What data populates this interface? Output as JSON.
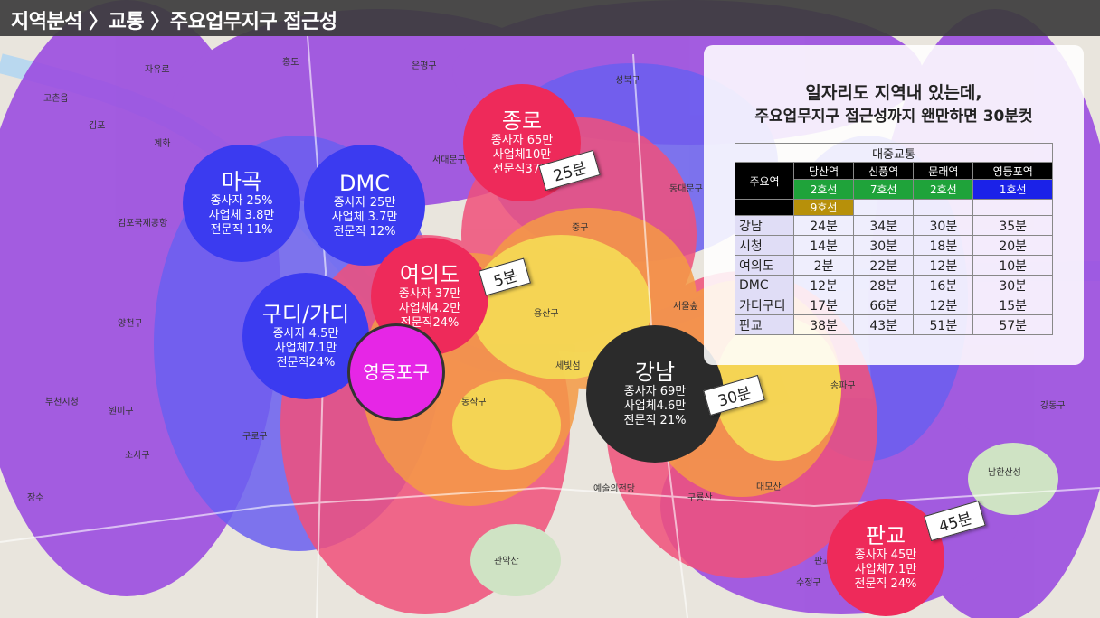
{
  "breadcrumb": "지역분석 〉교통 〉주요업무지구 접근성",
  "panel": {
    "title_line1": "일자리도 지역내 있는데,",
    "title_line2": "주요업무지구 접근성까지 왠만하면 30분컷",
    "table_title": "대중교통",
    "station_header": "주요역",
    "stations": [
      {
        "name": "당산역",
        "lines": [
          "2호선",
          "9호선"
        ],
        "line_colors": [
          "#1fa33a",
          "#b7900a"
        ]
      },
      {
        "name": "신풍역",
        "lines": [
          "7호선"
        ],
        "line_colors": [
          "#1fa33a"
        ]
      },
      {
        "name": "문래역",
        "lines": [
          "2호선"
        ],
        "line_colors": [
          "#1fa33a"
        ]
      },
      {
        "name": "영등포역",
        "lines": [
          "1호선"
        ],
        "line_colors": [
          "#1b22e8"
        ]
      }
    ],
    "rows": [
      {
        "dest": "강남",
        "times": [
          "24분",
          "34분",
          "30분",
          "35분"
        ]
      },
      {
        "dest": "시청",
        "times": [
          "14분",
          "30분",
          "18분",
          "20분"
        ]
      },
      {
        "dest": "여의도",
        "times": [
          "2분",
          "22분",
          "12분",
          "10분"
        ]
      },
      {
        "dest": "DMC",
        "times": [
          "12분",
          "28분",
          "16분",
          "30분"
        ]
      },
      {
        "dest": "가디구디",
        "times": [
          "17분",
          "66분",
          "12분",
          "15분"
        ]
      },
      {
        "dest": "판교",
        "times": [
          "38분",
          "43분",
          "51분",
          "57분"
        ]
      }
    ]
  },
  "hubs": {
    "magok": {
      "name": "마곡",
      "stats": [
        "종사자 25%",
        "사업체 3.8만",
        "전문직 11%"
      ],
      "color": "#3b3bf0"
    },
    "dmc": {
      "name": "DMC",
      "stats": [
        "종사자 25만",
        "사업체 3.7만",
        "전문직 12%"
      ],
      "color": "#3b3bf0"
    },
    "jongro": {
      "name": "종로",
      "stats": [
        "종사자 65만",
        "사업체10만",
        "전문직37%"
      ],
      "color": "#ee2a5a"
    },
    "yeouido": {
      "name": "여의도",
      "stats": [
        "종사자 37만",
        "사업체4.2만",
        "전문직24%"
      ],
      "color": "#ee2a5a"
    },
    "guro": {
      "name": "구디/가디",
      "stats": [
        "종사자 4.5만",
        "사업체7.1만",
        "전문직24%"
      ],
      "color": "#3b3bf0"
    },
    "yeongdeungpo": {
      "name": "영등포구",
      "color": "#e626e6"
    },
    "gangnam": {
      "name": "강남",
      "stats": [
        "종사자 69만",
        "사업체4.6만",
        "전문직 21%"
      ],
      "color": "#2b2b2b"
    },
    "pangyo": {
      "name": "판교",
      "stats": [
        "종사자 45만",
        "사업체7.1만",
        "전문직 24%"
      ],
      "color": "#ee2a5a"
    }
  },
  "travel_tags": {
    "jongro": "25분",
    "yeouido": "5분",
    "gangnam": "30분",
    "pangyo": "45분"
  },
  "map_labels": [
    "은평구",
    "성북구",
    "홍도",
    "자유로",
    "고촌읍",
    "김포",
    "계화",
    "서대문구",
    "중구",
    "김포국제공항",
    "용산구",
    "양천구",
    "부천시청",
    "원미구",
    "소사구",
    "구로구",
    "동작구",
    "관악산",
    "예술의전당",
    "대모산",
    "구룡산",
    "판교",
    "수정구",
    "남한산성",
    "강동구",
    "세빛섬",
    "장수",
    "송파구",
    "서울숲",
    "동대문구"
  ],
  "colors": {
    "purple": "#9b4de0",
    "blue": "#6a5ff0",
    "pink": "#f0507a",
    "orange": "#f59a45",
    "yellow": "#f5dc55"
  }
}
